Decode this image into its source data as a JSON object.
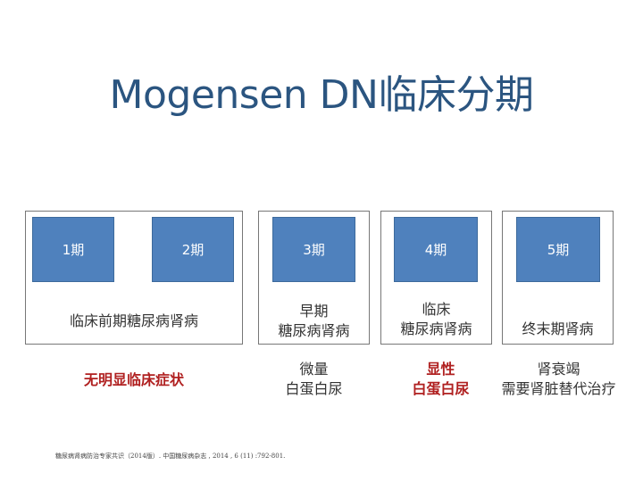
{
  "title": "Mogensen DN临床分期",
  "stages": [
    {
      "label": "1期"
    },
    {
      "label": "2期"
    },
    {
      "label": "3期"
    },
    {
      "label": "4期"
    },
    {
      "label": "5期"
    }
  ],
  "groups": [
    {
      "caption_lines": [
        "临床前期糖尿病肾病"
      ]
    },
    {
      "caption_lines": [
        "早期",
        "糖尿病肾病"
      ]
    },
    {
      "caption_lines": [
        "临床",
        "糖尿病肾病"
      ]
    },
    {
      "caption_lines": [
        "终末期肾病"
      ]
    }
  ],
  "notes": [
    {
      "lines": [
        "无明显临床症状"
      ]
    },
    {
      "lines": [
        "微量",
        "白蛋白尿"
      ]
    },
    {
      "lines": [
        "显性",
        "白蛋白尿"
      ]
    },
    {
      "lines": [
        "肾衰竭",
        "需要肾脏替代治疗"
      ]
    }
  ],
  "colors": {
    "title": "#2b5580",
    "stage_fill": "#4f81bd",
    "emphasis": "#b02020"
  },
  "reference": "糖尿病肾病防治专家共识（2014版）. 中国糖尿病杂志 , 2014 , 6 (11) :792-801."
}
